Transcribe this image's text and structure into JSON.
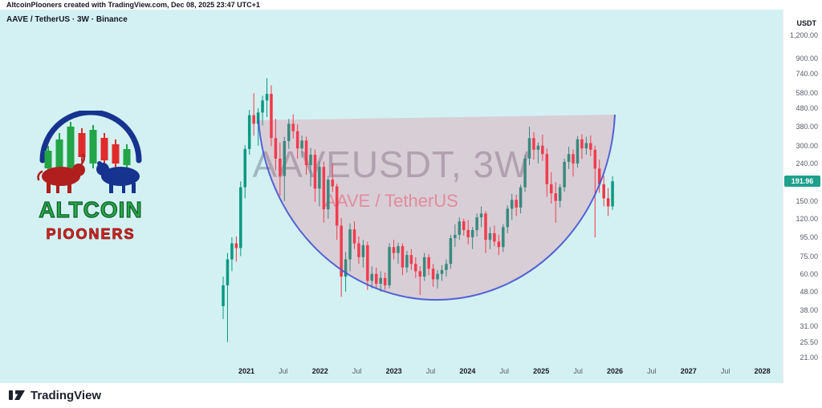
{
  "header": {
    "attribution": "AltcoinPlooners created with TradingView.com, Dec 08, 2025 23:47 UTC+1",
    "symbol_line": "AAVE / TetherUS · 3W · Binance"
  },
  "watermark": {
    "title": "AAVEUSDT, 3W",
    "subtitle": "AAVE / TetherUS"
  },
  "logo": {
    "line1": "ALTCOIN",
    "line2": "PIOONERS",
    "line1_color": "#28a745",
    "line2_color": "#e02020",
    "icons": [
      "rainbow-arc-icon",
      "candlestick-icons",
      "bull-icon",
      "bear-icon"
    ]
  },
  "footer": {
    "brand": "TradingView"
  },
  "price_scale": {
    "unit": "USDT",
    "current": {
      "text": "191.96",
      "value": 191.96,
      "bg": "#1ea08b"
    }
  },
  "colors": {
    "background": "#d3f1f2",
    "panel": "#ffffff",
    "up": "#089981",
    "down": "#f23645"
  },
  "chart_data": {
    "type": "candlestick",
    "title": "AAVEUSDT, 3W",
    "symbol": "AAVE / TetherUS",
    "exchange": "Binance",
    "interval": "3W",
    "scale": "logarithmic",
    "ylim": [
      21,
      1200
    ],
    "current_price": 191.96,
    "y_ticks": [
      {
        "text": "1,200.00",
        "value": 1200
      },
      {
        "text": "900.00",
        "value": 900
      },
      {
        "text": "740.00",
        "value": 740
      },
      {
        "text": "580.00",
        "value": 580
      },
      {
        "text": "480.00",
        "value": 480
      },
      {
        "text": "380.00",
        "value": 380
      },
      {
        "text": "300.00",
        "value": 300
      },
      {
        "text": "240.00",
        "value": 240
      },
      {
        "text": "150.00",
        "value": 150
      },
      {
        "text": "120.00",
        "value": 120
      },
      {
        "text": "95.00",
        "value": 95
      },
      {
        "text": "75.00",
        "value": 75
      },
      {
        "text": "60.00",
        "value": 60
      },
      {
        "text": "48.00",
        "value": 48
      },
      {
        "text": "38.00",
        "value": 38
      },
      {
        "text": "31.00",
        "value": 31
      },
      {
        "text": "25.50",
        "value": 25.5
      },
      {
        "text": "21.00",
        "value": 21
      }
    ],
    "x_ticks": [
      {
        "label": "2021",
        "major": true
      },
      {
        "label": "Jul",
        "major": false
      },
      {
        "label": "2022",
        "major": true
      },
      {
        "label": "Jul",
        "major": false
      },
      {
        "label": "2023",
        "major": true
      },
      {
        "label": "Jul",
        "major": false
      },
      {
        "label": "2024",
        "major": true
      },
      {
        "label": "Jul",
        "major": false
      },
      {
        "label": "2025",
        "major": true
      },
      {
        "label": "Jul",
        "major": false
      },
      {
        "label": "2026",
        "major": true
      },
      {
        "label": "Jul",
        "major": false
      },
      {
        "label": "2027",
        "major": true
      },
      {
        "label": "Jul",
        "major": false
      },
      {
        "label": "2028",
        "major": true
      }
    ],
    "pattern": {
      "name": "rounded-bottom-cup",
      "stroke": "#4454d4",
      "fill": "rgba(239,83,112,0.22)"
    },
    "candles": [
      [
        40,
        58,
        34,
        52
      ],
      [
        52,
        78,
        25.5,
        72
      ],
      [
        72,
        95,
        62,
        88
      ],
      [
        88,
        96,
        70,
        83
      ],
      [
        83,
        192,
        75,
        178
      ],
      [
        178,
        302,
        155,
        288
      ],
      [
        288,
        470,
        268,
        440
      ],
      [
        440,
        580,
        340,
        395
      ],
      [
        395,
        480,
        300,
        455
      ],
      [
        455,
        562,
        388,
        530
      ],
      [
        530,
        700,
        430,
        575
      ],
      [
        575,
        640,
        298,
        330
      ],
      [
        330,
        420,
        220,
        255
      ],
      [
        255,
        312,
        160,
        205
      ],
      [
        205,
        335,
        150,
        318
      ],
      [
        318,
        420,
        288,
        395
      ],
      [
        395,
        445,
        328,
        360
      ],
      [
        360,
        392,
        255,
        290
      ],
      [
        290,
        340,
        258,
        320
      ],
      [
        320,
        336,
        208,
        235
      ],
      [
        235,
        292,
        180,
        268
      ],
      [
        268,
        286,
        148,
        175
      ],
      [
        175,
        246,
        140,
        230
      ],
      [
        230,
        246,
        114,
        135
      ],
      [
        135,
        206,
        120,
        196
      ],
      [
        196,
        240,
        168,
        180
      ],
      [
        180,
        186,
        92,
        110
      ],
      [
        110,
        121,
        45,
        58
      ],
      [
        58,
        79,
        48,
        72
      ],
      [
        72,
        113,
        62,
        105
      ],
      [
        105,
        116,
        82,
        88
      ],
      [
        88,
        96,
        68,
        74
      ],
      [
        74,
        92,
        65,
        86
      ],
      [
        86,
        90,
        49,
        55
      ],
      [
        55,
        66,
        50,
        60
      ],
      [
        60,
        65,
        50,
        53
      ],
      [
        53,
        62,
        48,
        57
      ],
      [
        57,
        61,
        49,
        52
      ],
      [
        52,
        88,
        50,
        84
      ],
      [
        84,
        92,
        72,
        78
      ],
      [
        78,
        89,
        68,
        85
      ],
      [
        85,
        88,
        59,
        65
      ],
      [
        65,
        80,
        61,
        76
      ],
      [
        76,
        82,
        63,
        68
      ],
      [
        68,
        74,
        57,
        62
      ],
      [
        62,
        66,
        46,
        58
      ],
      [
        58,
        78,
        55,
        74
      ],
      [
        74,
        77,
        59,
        64
      ],
      [
        64,
        68,
        51,
        56
      ],
      [
        56,
        63,
        50,
        60
      ],
      [
        60,
        67,
        55,
        63
      ],
      [
        63,
        72,
        58,
        68
      ],
      [
        68,
        98,
        64,
        94
      ],
      [
        94,
        112,
        84,
        98
      ],
      [
        98,
        122,
        92,
        116
      ],
      [
        116,
        120,
        97,
        104
      ],
      [
        104,
        118,
        87,
        95
      ],
      [
        95,
        108,
        82,
        104
      ],
      [
        104,
        128,
        96,
        122
      ],
      [
        122,
        140,
        108,
        128
      ],
      [
        128,
        132,
        78,
        92
      ],
      [
        92,
        108,
        82,
        100
      ],
      [
        100,
        110,
        85,
        90
      ],
      [
        90,
        98,
        76,
        84
      ],
      [
        84,
        112,
        79,
        108
      ],
      [
        108,
        142,
        100,
        136
      ],
      [
        136,
        164,
        118,
        152
      ],
      [
        152,
        162,
        124,
        138
      ],
      [
        138,
        184,
        128,
        178
      ],
      [
        178,
        268,
        168,
        255
      ],
      [
        255,
        380,
        235,
        330
      ],
      [
        330,
        355,
        252,
        285
      ],
      [
        285,
        312,
        240,
        300
      ],
      [
        300,
        345,
        248,
        270
      ],
      [
        270,
        290,
        158,
        185
      ],
      [
        185,
        215,
        145,
        165
      ],
      [
        165,
        190,
        114,
        150
      ],
      [
        150,
        185,
        138,
        178
      ],
      [
        178,
        255,
        168,
        245
      ],
      [
        245,
        296,
        224,
        270
      ],
      [
        270,
        286,
        204,
        240
      ],
      [
        240,
        338,
        228,
        325
      ],
      [
        325,
        346,
        254,
        290
      ],
      [
        290,
        336,
        268,
        310
      ],
      [
        310,
        341,
        263,
        285
      ],
      [
        285,
        300,
        95,
        225
      ],
      [
        225,
        252,
        166,
        185
      ],
      [
        185,
        206,
        140,
        155
      ],
      [
        155,
        176,
        124,
        140
      ],
      [
        140,
        205,
        134,
        191.96
      ]
    ]
  }
}
